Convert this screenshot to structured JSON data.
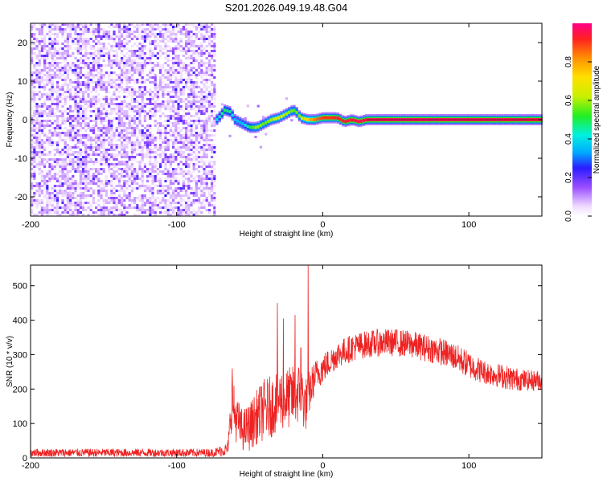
{
  "title": "S201.2026.049.19.48.G04",
  "chart_data": [
    {
      "type": "heatmap",
      "name": "spectrogram",
      "title": "S201.2026.049.19.48.G04",
      "xlabel": "Height of straight line (km)",
      "ylabel": "Frequency (Hz)",
      "xlim": [
        -200,
        150
      ],
      "ylim": [
        -25,
        25
      ],
      "xticks": [
        -200,
        -100,
        0,
        100
      ],
      "yticks": [
        -20,
        -10,
        0,
        10,
        20
      ],
      "noise_region_x": [
        -200,
        -73
      ],
      "noise_amplitude_typical": 0.15,
      "signal_ridge": {
        "x": [
          -75,
          -70,
          -67,
          -63,
          -60,
          -55,
          -50,
          -45,
          -40,
          -35,
          -30,
          -25,
          -20,
          -18,
          -15,
          -10,
          -5,
          0,
          5,
          10,
          15,
          20,
          25,
          30,
          40,
          50,
          60,
          80,
          100,
          120,
          150
        ],
        "freq": [
          -1,
          1,
          2.5,
          2,
          0,
          -1,
          -2,
          -2,
          -1,
          0,
          0.5,
          1.5,
          2.5,
          2,
          0.5,
          0,
          0,
          0.5,
          0.5,
          0.5,
          -0.5,
          0,
          -0.5,
          0,
          0,
          0,
          0,
          0,
          0,
          0,
          0
        ],
        "amplitude": [
          0.35,
          0.45,
          0.5,
          0.45,
          0.35,
          0.35,
          0.5,
          0.6,
          0.55,
          0.6,
          0.65,
          0.6,
          0.55,
          0.55,
          0.6,
          0.75,
          0.85,
          0.9,
          0.9,
          0.92,
          0.92,
          0.95,
          0.95,
          0.95,
          0.96,
          0.97,
          0.97,
          0.97,
          0.96,
          0.96,
          0.95
        ]
      },
      "colorbar": {
        "label": "Normalized spectral amplitude",
        "range": [
          0,
          1
        ],
        "ticks": [
          "0.0",
          "0.2",
          "0.4",
          "0.6",
          "0.8"
        ],
        "tick_values": [
          0.0,
          0.2,
          0.4,
          0.6,
          0.8
        ]
      }
    },
    {
      "type": "line",
      "name": "snr",
      "xlabel": "Height of straight line (km)",
      "ylabel": "SNR (10 * v/v)",
      "xlim": [
        -200,
        150
      ],
      "ylim": [
        0,
        560
      ],
      "xticks": [
        -200,
        -100,
        0,
        100
      ],
      "yticks": [
        0,
        100,
        200,
        300,
        400,
        500
      ],
      "color": "#ee2222",
      "x": [
        -200,
        -150,
        -100,
        -75,
        -65,
        -62,
        -60,
        -55,
        -50,
        -45,
        -40,
        -35,
        -30,
        -25,
        -20,
        -15,
        -12,
        -10,
        -5,
        0,
        5,
        10,
        20,
        30,
        40,
        50,
        60,
        70,
        80,
        90,
        100,
        110,
        120,
        130,
        140,
        150
      ],
      "mean": [
        15,
        15,
        15,
        15,
        25,
        170,
        120,
        80,
        90,
        120,
        140,
        150,
        170,
        170,
        180,
        190,
        150,
        180,
        240,
        260,
        280,
        300,
        320,
        330,
        335,
        335,
        330,
        320,
        310,
        295,
        270,
        250,
        240,
        230,
        225,
        225
      ],
      "spread": [
        12,
        12,
        12,
        12,
        20,
        80,
        70,
        60,
        70,
        80,
        90,
        90,
        90,
        90,
        90,
        90,
        80,
        70,
        45,
        45,
        40,
        40,
        40,
        40,
        40,
        40,
        40,
        40,
        40,
        40,
        40,
        35,
        35,
        35,
        30,
        30
      ],
      "spikes": [
        {
          "x": -62,
          "y": 260
        },
        {
          "x": -31,
          "y": 450
        },
        {
          "x": -27,
          "y": 405
        },
        {
          "x": -19,
          "y": 415
        },
        {
          "x": -10,
          "y": 560
        },
        {
          "x": -15,
          "y": 320
        }
      ]
    }
  ]
}
